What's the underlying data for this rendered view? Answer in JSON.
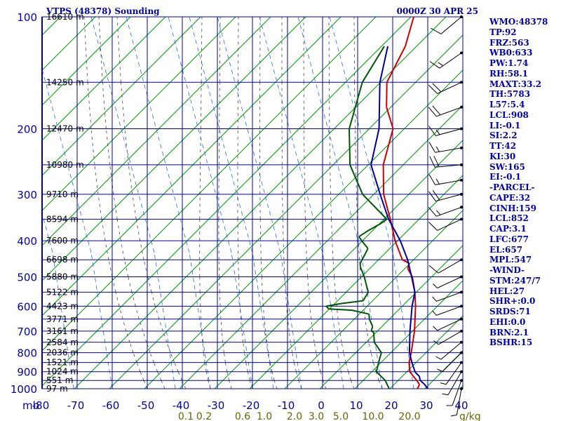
{
  "chart_data": {
    "type": "line",
    "title": "VTPS (48378) Sounding",
    "valid_time": "0000Z 30 APR 25",
    "y_axis_unit": "mb",
    "pressure_levels": [
      100,
      200,
      300,
      400,
      500,
      600,
      700,
      800,
      900,
      1000
    ],
    "temperature_ticks": [
      -80,
      -70,
      -60,
      -50,
      -40,
      -30,
      -20,
      -10,
      0,
      10,
      20,
      30,
      40
    ],
    "temperature_tick_labels": [
      "-80",
      "-70",
      "-60",
      "-50",
      "-40",
      "-30",
      "-20",
      "-10",
      "0",
      "10",
      "20",
      "30",
      "40"
    ],
    "mixing_ratio_labels": [
      "0.1",
      "0.2",
      "0.6",
      "1.0",
      "2.0",
      "3.0",
      "5.0",
      "10.0",
      "20.0"
    ],
    "mixing_ratio_unit": "g/kg",
    "heights": [
      {
        "p": 100,
        "label": "16610 m"
      },
      {
        "p": 150,
        "label": "14250 m"
      },
      {
        "p": 200,
        "label": "12470 m"
      },
      {
        "p": 250,
        "label": "10980 m"
      },
      {
        "p": 300,
        "label": "9710 m"
      },
      {
        "p": 350,
        "label": "8594 m"
      },
      {
        "p": 400,
        "label": "7600 m"
      },
      {
        "p": 450,
        "label": "6698 m"
      },
      {
        "p": 500,
        "label": "5880 m"
      },
      {
        "p": 550,
        "label": "5122 m"
      },
      {
        "p": 600,
        "label": "4423 m"
      },
      {
        "p": 650,
        "label": "3771 m"
      },
      {
        "p": 700,
        "label": "3161 m"
      },
      {
        "p": 750,
        "label": "2584 m"
      },
      {
        "p": 800,
        "label": "2036 m"
      },
      {
        "p": 850,
        "label": "1521 m"
      },
      {
        "p": 900,
        "label": "1024 m"
      },
      {
        "p": 950,
        "label": "551 m"
      },
      {
        "p": 1000,
        "label": "97 m"
      }
    ],
    "series": [
      {
        "key": "temperature",
        "color": "#cc0000",
        "points": [
          [
            1000,
            27
          ],
          [
            975,
            26.5
          ],
          [
            950,
            24.5
          ],
          [
            925,
            22.3
          ],
          [
            900,
            20
          ],
          [
            850,
            17.2
          ],
          [
            800,
            15
          ],
          [
            700,
            9.8
          ],
          [
            600,
            3
          ],
          [
            550,
            -1.2
          ],
          [
            500,
            -6.3
          ],
          [
            475,
            -10
          ],
          [
            460,
            -11
          ],
          [
            450,
            -14
          ],
          [
            400,
            -21.5
          ],
          [
            350,
            -29
          ],
          [
            300,
            -38
          ],
          [
            250,
            -46.5
          ],
          [
            200,
            -54
          ],
          [
            175,
            -62
          ],
          [
            150,
            -69
          ],
          [
            120,
            -74
          ],
          [
            100,
            -80
          ]
        ]
      },
      {
        "key": "dewpoint",
        "color": "#005500",
        "points": [
          [
            1000,
            19
          ],
          [
            950,
            15.5
          ],
          [
            900,
            10.5
          ],
          [
            850,
            8.5
          ],
          [
            800,
            6.5
          ],
          [
            750,
            1.5
          ],
          [
            705,
            -1.5
          ],
          [
            700,
            -2.5
          ],
          [
            680,
            -3.5
          ],
          [
            650,
            -6.5
          ],
          [
            630,
            -8
          ],
          [
            615,
            -14
          ],
          [
            610,
            -21
          ],
          [
            600,
            -22.5
          ],
          [
            590,
            -19
          ],
          [
            580,
            -13.5
          ],
          [
            550,
            -14.5
          ],
          [
            500,
            -20
          ],
          [
            470,
            -24
          ],
          [
            460,
            -25
          ],
          [
            420,
            -27
          ],
          [
            400,
            -31
          ],
          [
            390,
            -33
          ],
          [
            375,
            -32
          ],
          [
            360,
            -30.5
          ],
          [
            350,
            -30
          ],
          [
            300,
            -44
          ],
          [
            250,
            -56
          ],
          [
            200,
            -66.5
          ],
          [
            150,
            -76
          ],
          [
            120,
            -80
          ]
        ]
      },
      {
        "key": "parcel",
        "color": "#000099",
        "points": [
          [
            1000,
            30
          ],
          [
            975,
            28
          ],
          [
            950,
            25.5
          ],
          [
            925,
            24
          ],
          [
            908,
            22.2
          ],
          [
            900,
            21.5
          ],
          [
            850,
            18
          ],
          [
            800,
            14.5
          ],
          [
            700,
            8.5
          ],
          [
            600,
            2
          ],
          [
            550,
            -1.2
          ],
          [
            500,
            -6.5
          ],
          [
            450,
            -12.5
          ],
          [
            400,
            -20
          ],
          [
            350,
            -29.5
          ],
          [
            300,
            -39
          ],
          [
            250,
            -50
          ],
          [
            200,
            -58
          ],
          [
            150,
            -71
          ],
          [
            120,
            -79
          ]
        ]
      }
    ],
    "wind_barbs": [
      {
        "p": 100,
        "dir": 230,
        "spd": 10
      },
      {
        "p": 125,
        "dir": 235,
        "spd": 15
      },
      {
        "p": 150,
        "dir": 245,
        "spd": 20
      },
      {
        "p": 175,
        "dir": 250,
        "spd": 20
      },
      {
        "p": 200,
        "dir": 255,
        "spd": 15
      },
      {
        "p": 225,
        "dir": 260,
        "spd": 15
      },
      {
        "p": 250,
        "dir": 265,
        "spd": 20
      },
      {
        "p": 275,
        "dir": 260,
        "spd": 15
      },
      {
        "p": 300,
        "dir": 255,
        "spd": 20
      },
      {
        "p": 325,
        "dir": 250,
        "spd": 15
      },
      {
        "p": 350,
        "dir": 245,
        "spd": 10
      },
      {
        "p": 450,
        "dir": 240,
        "spd": 10
      },
      {
        "p": 500,
        "dir": 245,
        "spd": 5
      },
      {
        "p": 550,
        "dir": 250,
        "spd": 5
      },
      {
        "p": 600,
        "dir": 250,
        "spd": 5
      },
      {
        "p": 650,
        "dir": 245,
        "spd": 5
      },
      {
        "p": 700,
        "dir": 240,
        "spd": 5
      },
      {
        "p": 750,
        "dir": 230,
        "spd": 5
      },
      {
        "p": 800,
        "dir": 225,
        "spd": 5
      },
      {
        "p": 850,
        "dir": 215,
        "spd": 5
      },
      {
        "p": 900,
        "dir": 210,
        "spd": 5
      },
      {
        "p": 950,
        "dir": 200,
        "spd": 5
      },
      {
        "p": 1000,
        "dir": 190,
        "spd": 5
      }
    ],
    "grid": true
  },
  "indices": [
    "WMO:48378",
    "TP:92",
    "FRZ:563",
    "WB0:633",
    "PW:1.74",
    "RH:58.1",
    "MAXT:33.2",
    "TH:5783",
    "L57:5.4",
    "LCL:908",
    "LI:-0.1",
    "SI:2.2",
    "TT:42",
    "KI:30",
    "SW:165",
    "EI:-0.1",
    "-PARCEL-",
    "CAPE:32",
    "CINH:159",
    "LCL:852",
    "CAP:3.1",
    "LFC:677",
    "EL:657",
    "MPL:547",
    "-WIND-",
    "STM:247/7",
    "HEL:27",
    "SHR+:0.0",
    "SRDS:71",
    "EHI:0.0",
    "BRN:2.1",
    "BSHR:15"
  ],
  "colors": {
    "grid": "#0000aa",
    "dry_adiabat": "#009900",
    "mixing_ratio": "#2266ff",
    "moist_adiabat": "#444444",
    "text": "#0000aa",
    "wind_label": "#666600"
  }
}
